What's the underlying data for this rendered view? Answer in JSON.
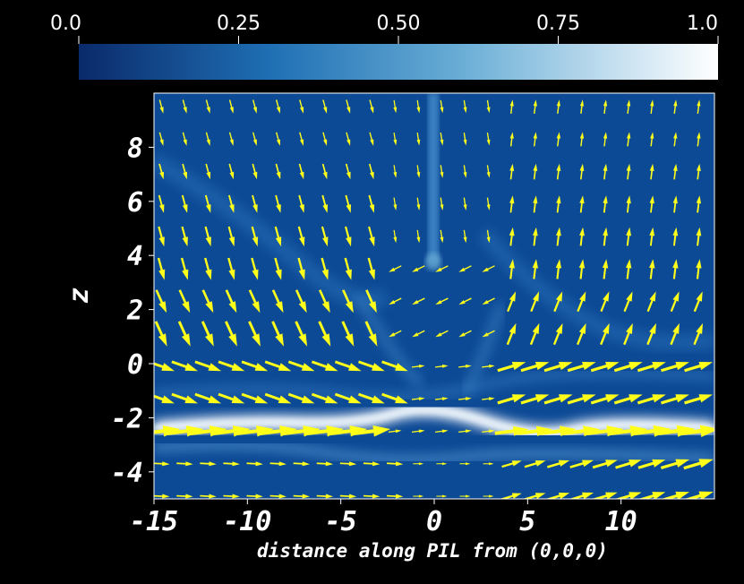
{
  "chart_data": {
    "type": "heatmap",
    "xlabel": "distance along PIL from (0,0,0)",
    "ylabel": "z",
    "xlim": [
      -15,
      15
    ],
    "ylim": [
      -5,
      10
    ],
    "x_ticks": [
      -15,
      -10,
      -5,
      0,
      5,
      10
    ],
    "x_tick_labels": [
      "-15",
      "-10",
      "-5",
      "0",
      "5",
      "10"
    ],
    "y_ticks": [
      -4,
      -2,
      0,
      2,
      4,
      6,
      8
    ],
    "y_tick_labels": [
      "-4",
      "-2",
      "0",
      "2",
      "4",
      "6",
      "8"
    ],
    "colorbar": {
      "range": [
        0,
        1
      ],
      "ticks": [
        0,
        0.25,
        0.5,
        0.75,
        1
      ],
      "tick_labels": [
        "0.0",
        "0.25",
        "0.50",
        "0.75",
        "1.0"
      ],
      "colors": [
        "#0a2a6a",
        "#1f6fb4",
        "#8fc4e0",
        "#ffffff"
      ]
    },
    "vector_color": "#ffff1a",
    "background_color": "#0d4a96",
    "grid": false,
    "legend": "colorbar-top"
  }
}
